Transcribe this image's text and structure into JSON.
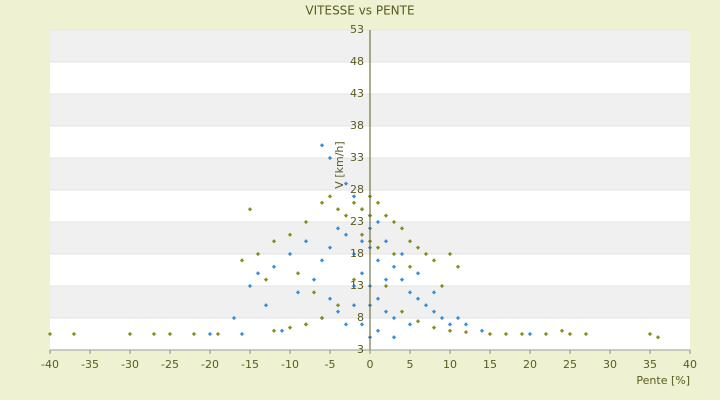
{
  "chart_data": {
    "type": "scatter",
    "title": "VITESSE vs PENTE",
    "x_label": "Pente [%]",
    "y_label": "V [km/h]",
    "xlim": [
      -40,
      40
    ],
    "xticks": [
      -40,
      -35,
      -30,
      -25,
      -20,
      -15,
      -10,
      -5,
      0,
      5,
      10,
      15,
      20,
      25,
      30,
      35,
      40
    ],
    "ylim": [
      3,
      53
    ],
    "yticks": [
      3,
      8,
      13,
      18,
      23,
      28,
      33,
      38,
      43,
      48,
      53
    ],
    "grid": true,
    "series": [
      {
        "color": "#3a8fd6",
        "x": [
          -6,
          -5,
          -3,
          -2,
          -1,
          0,
          1,
          -4,
          -8,
          -10,
          -12,
          -14,
          -15,
          -17,
          -13,
          -9,
          -7,
          -6,
          -5,
          -3,
          -2,
          -1,
          0,
          0,
          1,
          2,
          3,
          4,
          5,
          6,
          7,
          8,
          9,
          10,
          11,
          12,
          -1,
          0,
          1,
          2,
          3,
          -2,
          -3,
          -4,
          -5,
          0,
          1,
          -1,
          0,
          2,
          -2,
          4,
          6,
          8,
          -11,
          -8,
          -6,
          3,
          5,
          -20,
          20,
          -16,
          14
        ],
        "values": [
          35,
          33,
          29,
          27,
          25,
          24,
          23,
          22,
          20,
          18,
          16,
          15,
          13,
          8,
          10,
          12,
          14,
          17,
          19,
          21,
          18,
          20,
          22,
          19,
          17,
          20,
          16,
          14,
          12,
          11,
          10,
          9,
          8,
          7,
          8,
          7,
          15,
          13,
          11,
          9,
          8,
          10,
          7,
          9,
          11,
          5,
          6,
          7,
          10,
          14,
          13,
          18,
          15,
          12,
          6,
          7,
          8,
          5,
          7,
          5.5,
          5.5,
          5.5,
          6
        ]
      },
      {
        "color": "#8c8c1a",
        "x": [
          -40,
          -37,
          -30,
          -27,
          -25,
          -22,
          -19,
          -15,
          -16,
          -14,
          -12,
          -10,
          -8,
          -6,
          -5,
          -4,
          -3,
          -2,
          -1,
          0,
          0,
          1,
          2,
          3,
          4,
          5,
          6,
          7,
          8,
          10,
          11,
          -12,
          -10,
          -8,
          -6,
          -4,
          -2,
          0,
          2,
          4,
          6,
          8,
          10,
          12,
          15,
          17,
          19,
          22,
          24,
          25,
          27,
          35,
          36,
          -13,
          -9,
          5,
          9,
          -7,
          3,
          -1,
          1
        ],
        "values": [
          5.5,
          5.5,
          5.5,
          5.5,
          5.5,
          5.5,
          5.5,
          25,
          17,
          18,
          20,
          21,
          23,
          26,
          27,
          25,
          24,
          26,
          25,
          27,
          24,
          26,
          24,
          23,
          22,
          20,
          19,
          18,
          17,
          18,
          16,
          6,
          6.5,
          7,
          8,
          10,
          14,
          20,
          13,
          9,
          7.5,
          6.5,
          6,
          5.8,
          5.5,
          5.5,
          5.5,
          5.5,
          6,
          5.5,
          5.5,
          5.5,
          5,
          14,
          15,
          16,
          13,
          12,
          18,
          21,
          19
        ]
      }
    ]
  }
}
